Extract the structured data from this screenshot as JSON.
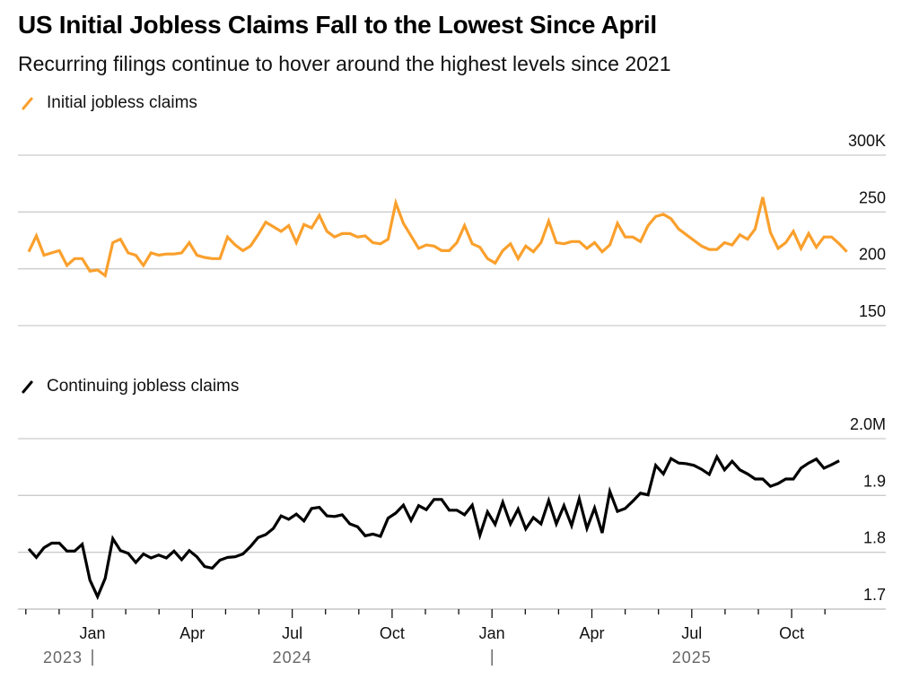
{
  "title": "US Initial Jobless Claims Fall to the Lowest Since April",
  "subtitle": "Recurring filings continue to hover around the highest levels since 2021",
  "colors": {
    "initial": "#FAA02D",
    "continuing": "#000000",
    "grid": "#cccccc",
    "year": "#666666"
  },
  "chart_data": [
    {
      "type": "line",
      "title": "Initial jobless claims",
      "legend": "Initial jobless claims",
      "ylabel": "",
      "ylim": [
        150,
        300
      ],
      "yticks": [
        150,
        200,
        250,
        300
      ],
      "ytick_labels": [
        "150",
        "200",
        "250",
        "300K"
      ],
      "x_unit": "weeks since 2023-10-07",
      "series": [
        {
          "name": "Initial jobless claims",
          "values": [
            215,
            229,
            212,
            214,
            216,
            203,
            209,
            209,
            198,
            199,
            194,
            223,
            226,
            214,
            212,
            203,
            214,
            212,
            213,
            213,
            214,
            223,
            212,
            210,
            209,
            209,
            228,
            221,
            216,
            220,
            230,
            241,
            237,
            233,
            238,
            223,
            239,
            236,
            247,
            233,
            228,
            231,
            231,
            228,
            229,
            223,
            222,
            226,
            258,
            240,
            229,
            218,
            221,
            220,
            216,
            216,
            223,
            238,
            222,
            219,
            209,
            205,
            216,
            222,
            209,
            220,
            215,
            223,
            242,
            223,
            222,
            224,
            224,
            218,
            223,
            215,
            221,
            240,
            228,
            228,
            224,
            238,
            246,
            248,
            244,
            235,
            230,
            225,
            220,
            217,
            217,
            223,
            221,
            230,
            226,
            235,
            263,
            232,
            218,
            223,
            233,
            218,
            231,
            219,
            228,
            228,
            222,
            215
          ]
        }
      ],
      "xticks": [
        "Jan",
        "Apr",
        "Jul",
        "Oct",
        "Jan",
        "Apr",
        "Jul",
        "Oct"
      ],
      "year_labels": [
        "2023",
        "2024",
        "2025"
      ]
    },
    {
      "type": "line",
      "title": "Continuing jobless claims",
      "legend": "Continuing jobless claims",
      "ylabel": "",
      "ylim": [
        1.7,
        2.0
      ],
      "yticks": [
        1.7,
        1.8,
        1.9,
        2.0
      ],
      "ytick_labels": [
        "1.7",
        "1.8",
        "1.9",
        "2.0M"
      ],
      "x_unit": "weeks since 2023-10-07",
      "series": [
        {
          "name": "Continuing jobless claims",
          "values": [
            1.806,
            1.791,
            1.808,
            1.816,
            1.816,
            1.802,
            1.802,
            1.814,
            1.751,
            1.722,
            1.754,
            1.824,
            1.803,
            1.798,
            1.782,
            1.797,
            1.79,
            1.795,
            1.79,
            1.802,
            1.787,
            1.803,
            1.792,
            1.775,
            1.772,
            1.786,
            1.791,
            1.792,
            1.797,
            1.81,
            1.826,
            1.831,
            1.842,
            1.864,
            1.858,
            1.867,
            1.855,
            1.877,
            1.879,
            1.864,
            1.863,
            1.866,
            1.85,
            1.845,
            1.829,
            1.832,
            1.828,
            1.86,
            1.869,
            1.883,
            1.856,
            1.882,
            1.875,
            1.893,
            1.893,
            1.874,
            1.874,
            1.866,
            1.883,
            1.83,
            1.871,
            1.849,
            1.888,
            1.85,
            1.876,
            1.841,
            1.861,
            1.85,
            1.891,
            1.85,
            1.882,
            1.847,
            1.894,
            1.842,
            1.878,
            1.834,
            1.907,
            1.872,
            1.877,
            1.89,
            1.904,
            1.901,
            1.953,
            1.938,
            1.965,
            1.957,
            1.956,
            1.953,
            1.946,
            1.937,
            1.968,
            1.945,
            1.96,
            1.945,
            1.938,
            1.929,
            1.929,
            1.916,
            1.921,
            1.929,
            1.929,
            1.948,
            1.957,
            1.964,
            1.948,
            1.954,
            1.961
          ]
        }
      ],
      "xticks": [
        "Jan",
        "Apr",
        "Jul",
        "Oct",
        "Jan",
        "Apr",
        "Jul",
        "Oct"
      ],
      "year_labels": [
        "2023",
        "2024",
        "2025"
      ]
    }
  ]
}
